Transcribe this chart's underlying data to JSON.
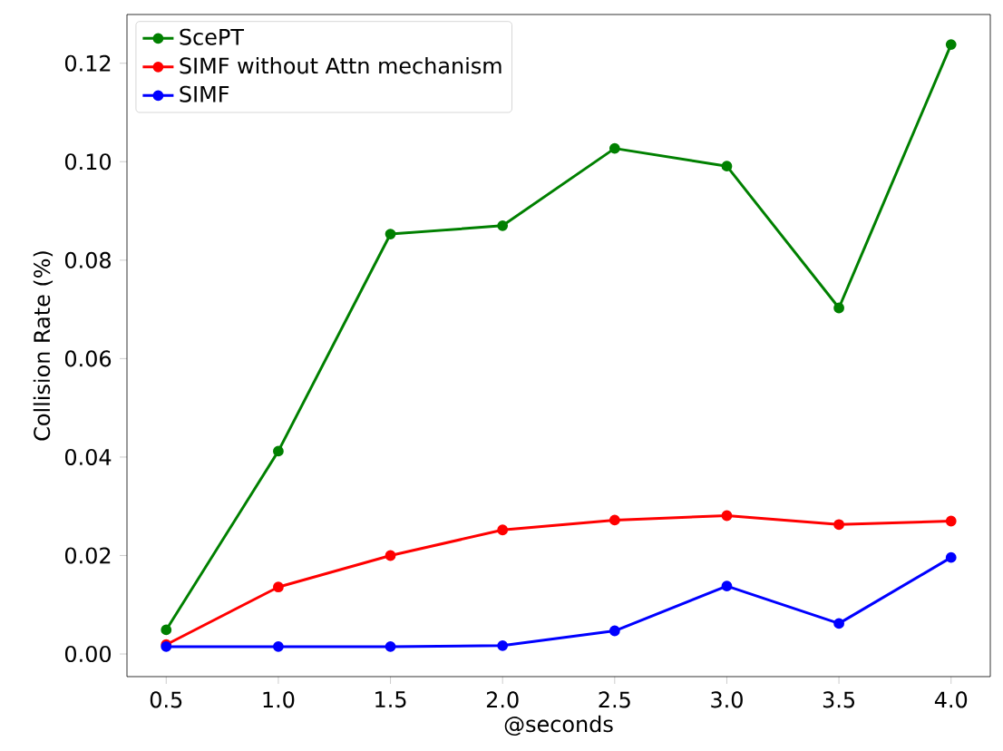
{
  "chart_data": {
    "type": "line",
    "xlabel": "@seconds",
    "ylabel": "Collision Rate (%)",
    "x": [
      0.5,
      1.0,
      1.5,
      2.0,
      2.5,
      3.0,
      3.5,
      4.0
    ],
    "series": [
      {
        "name": "ScePT",
        "color": "#008000",
        "values": [
          0.0049,
          0.0412,
          0.0853,
          0.087,
          0.1027,
          0.0991,
          0.0703,
          0.1238
        ]
      },
      {
        "name": "SIMF without Attn mechanism",
        "color": "#ff0000",
        "values": [
          0.0019,
          0.0136,
          0.02,
          0.0252,
          0.0272,
          0.0281,
          0.0263,
          0.027
        ]
      },
      {
        "name": "SIMF",
        "color": "#0000ff",
        "values": [
          0.0015,
          0.0015,
          0.0015,
          0.0017,
          0.0047,
          0.0138,
          0.0062,
          0.0196
        ]
      }
    ],
    "xlim": [
      0.325,
      4.175
    ],
    "ylim": [
      -0.0046,
      0.1299
    ],
    "xticks": [
      {
        "value": 0.5,
        "label": "0.5"
      },
      {
        "value": 1.0,
        "label": "1.0"
      },
      {
        "value": 1.5,
        "label": "1.5"
      },
      {
        "value": 2.0,
        "label": "2.0"
      },
      {
        "value": 2.5,
        "label": "2.5"
      },
      {
        "value": 3.0,
        "label": "3.0"
      },
      {
        "value": 3.5,
        "label": "3.5"
      },
      {
        "value": 4.0,
        "label": "4.0"
      }
    ],
    "yticks": [
      {
        "value": 0,
        "label": "0.00"
      },
      {
        "value": 0.02,
        "label": "0.02"
      },
      {
        "value": 0.04,
        "label": "0.04"
      },
      {
        "value": 0.06,
        "label": "0.06"
      },
      {
        "value": 0.08,
        "label": "0.08"
      },
      {
        "value": 0.1,
        "label": "0.10"
      },
      {
        "value": 0.12,
        "label": "0.12"
      }
    ],
    "legend": "top left",
    "marker": "circle",
    "line_style": "solid",
    "grid": false
  }
}
